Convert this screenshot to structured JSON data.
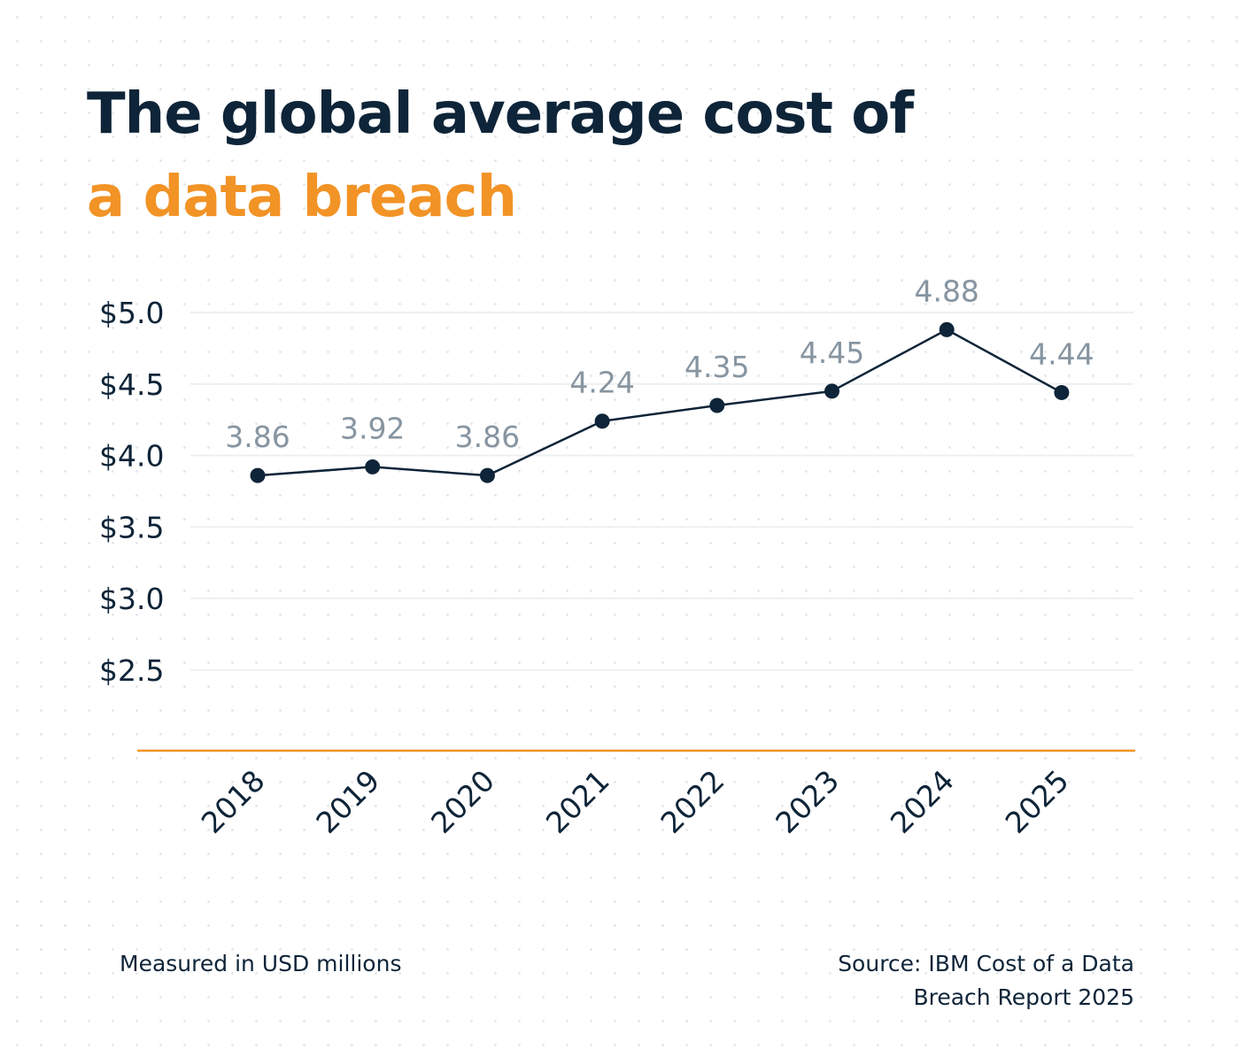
{
  "title": {
    "line1": "The global average cost of",
    "line2": "a data breach"
  },
  "footer": {
    "unit_note": "Measured in USD millions",
    "source": "Source: IBM Cost of a Data Breach Report 2025"
  },
  "colors": {
    "title": "#0e2438",
    "accent": "#f29326",
    "line": "#0e2438",
    "data_label": "#8795a1",
    "gridline": "#eeeff1",
    "baseline": "#f29326"
  },
  "chart_data": {
    "type": "line",
    "title": "The global average cost of a data breach",
    "xlabel": "",
    "ylabel": "",
    "categories": [
      "2018",
      "2019",
      "2020",
      "2021",
      "2022",
      "2023",
      "2024",
      "2025"
    ],
    "series": [
      {
        "values": [
          3.86,
          3.92,
          3.86,
          4.24,
          4.35,
          4.45,
          4.88,
          4.44
        ],
        "data_labels": [
          "3.86",
          "3.92",
          "3.86",
          "4.24",
          "4.35",
          "4.45",
          "4.88",
          "4.44"
        ]
      }
    ],
    "y_ticks": [
      2.5,
      3.0,
      3.5,
      4.0,
      4.5,
      5.0
    ],
    "y_tick_labels": [
      "$2.5",
      "$3.0",
      "$3.5",
      "$4.0",
      "$4.5",
      "$5.0"
    ],
    "ylim": [
      2.0,
      5.0
    ],
    "grid": true,
    "legend": "none"
  }
}
